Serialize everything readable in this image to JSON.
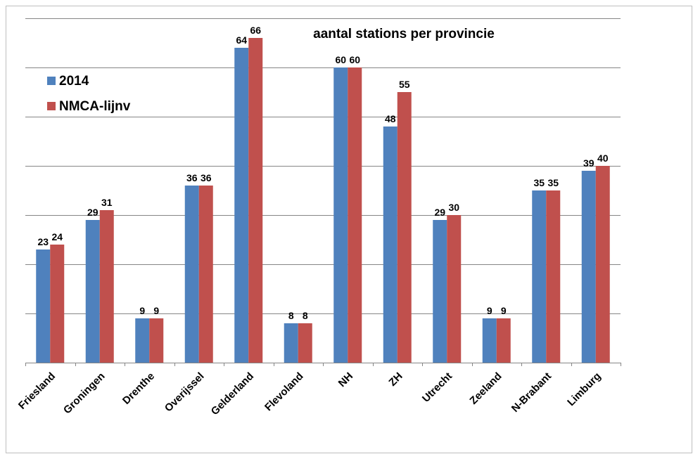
{
  "chart_data": {
    "type": "bar",
    "title": "aantal stations per provincie",
    "xlabel": "",
    "ylabel": "",
    "categories": [
      "Friesland",
      "Groningen",
      "Drenthe",
      "Overijssel",
      "Gelderland",
      "Flevoland",
      "NH",
      "ZH",
      "Utrecht",
      "Zeeland",
      "N-Brabant",
      "Limburg"
    ],
    "series": [
      {
        "name": "2014",
        "color": "#4f81bd",
        "values": [
          23,
          29,
          9,
          36,
          64,
          8,
          60,
          48,
          29,
          9,
          35,
          39
        ]
      },
      {
        "name": "NMCA-lijnv",
        "color": "#c0504d",
        "values": [
          24,
          31,
          9,
          36,
          66,
          8,
          60,
          55,
          30,
          9,
          35,
          40
        ]
      }
    ],
    "ylim": [
      0,
      70
    ],
    "y_gridline_step": 10,
    "y_tick_labels_shown": false,
    "grid": true,
    "legend_position": "top-left",
    "x_tick_rotation": "rotated"
  }
}
